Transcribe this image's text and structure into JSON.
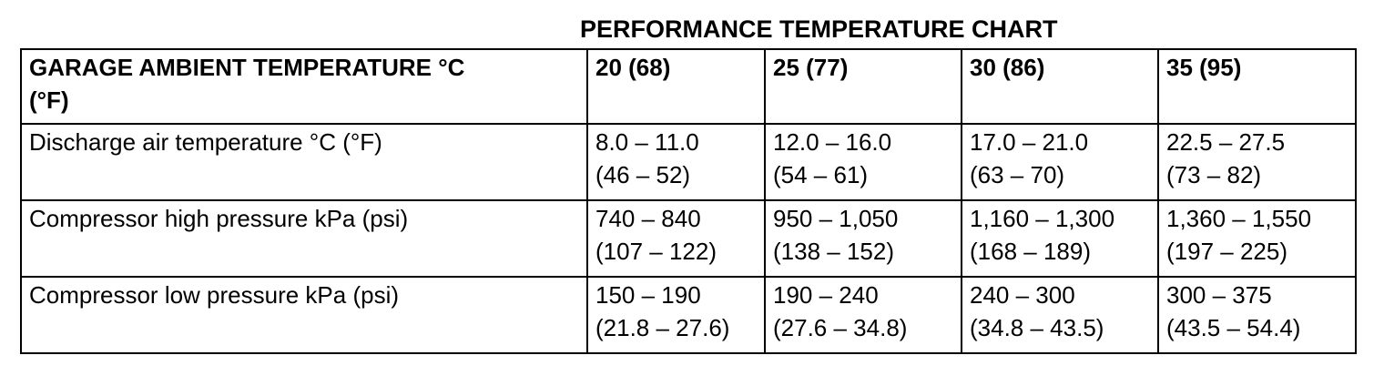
{
  "title": "PERFORMANCE TEMPERATURE CHART",
  "table": {
    "header": {
      "label_lines": [
        "GARAGE AMBIENT TEMPERATURE °C",
        "(°F)"
      ],
      "columns": [
        "20 (68)",
        "25 (77)",
        "30 (86)",
        "35 (95)"
      ]
    },
    "rows": [
      {
        "label": "Discharge air temperature °C (°F)",
        "cells": [
          [
            "8.0 – 11.0",
            "(46 – 52)"
          ],
          [
            "12.0 – 16.0",
            "(54 – 61)"
          ],
          [
            "17.0 – 21.0",
            "(63 – 70)"
          ],
          [
            "22.5 – 27.5",
            "(73 – 82)"
          ]
        ]
      },
      {
        "label": "Compressor high pressure kPa (psi)",
        "cells": [
          [
            "740 – 840",
            "(107 – 122)"
          ],
          [
            "950 – 1,050",
            "(138 – 152)"
          ],
          [
            "1,160 – 1,300",
            "(168 – 189)"
          ],
          [
            "1,360 – 1,550",
            "(197 – 225)"
          ]
        ]
      },
      {
        "label": "Compressor low pressure kPa (psi)",
        "cells": [
          [
            "150 – 190",
            "(21.8 – 27.6)"
          ],
          [
            "190 – 240",
            "(27.6 – 34.8)"
          ],
          [
            "240 – 300",
            "(34.8 – 43.5)"
          ],
          [
            "300 – 375",
            "(43.5 – 54.4)"
          ]
        ]
      }
    ]
  }
}
